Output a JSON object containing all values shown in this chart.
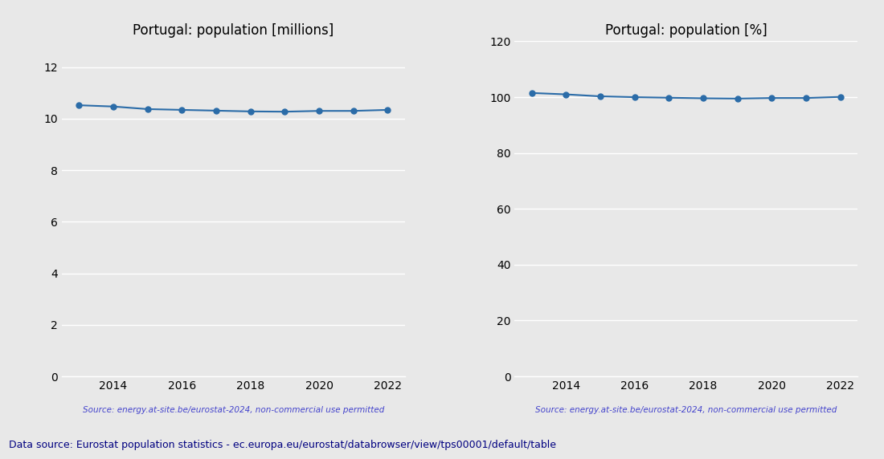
{
  "years": [
    2013,
    2014,
    2015,
    2016,
    2017,
    2018,
    2019,
    2020,
    2021,
    2022
  ],
  "population_millions": [
    10.52,
    10.47,
    10.37,
    10.34,
    10.31,
    10.28,
    10.27,
    10.3,
    10.3,
    10.34
  ],
  "population_percent": [
    101.5,
    101.0,
    100.3,
    100.0,
    99.8,
    99.6,
    99.5,
    99.7,
    99.7,
    100.1
  ],
  "title_millions": "Portugal: population [millions]",
  "title_percent": "Portugal: population [%]",
  "source_text": "Source: energy.at-site.be/eurostat-2024, non-commercial use permitted",
  "footer_text": "Data source: Eurostat population statistics - ec.europa.eu/eurostat/databrowser/view/tps00001/default/table",
  "line_color": "#2b6ca8",
  "source_color": "#4444cc",
  "footer_color": "#000080",
  "bg_color": "#e8e8e8",
  "axes_bg_color": "#e8e8e8",
  "ylim_millions": [
    0,
    13
  ],
  "ylim_percent": [
    0,
    120
  ],
  "yticks_millions": [
    0,
    2,
    4,
    6,
    8,
    10,
    12
  ],
  "yticks_percent": [
    0,
    20,
    40,
    60,
    80,
    100,
    120
  ]
}
